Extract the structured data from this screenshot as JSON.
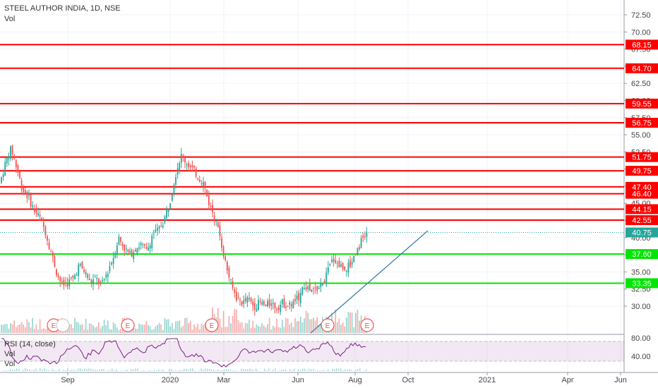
{
  "header": {
    "symbol": "STEEL AUTHOR INDIA, 1D, NSE",
    "vol_label": "Vol"
  },
  "rsi_panel": {
    "label": "RSI (14, close)",
    "vol_label": "Vol",
    "ticks": [
      "80.00",
      "40.00"
    ]
  },
  "chart_data": {
    "type": "candlestick",
    "price_axis": {
      "ticks": [
        72.5,
        70.0,
        67.5,
        65.0,
        62.5,
        60.0,
        57.5,
        55.0,
        52.5,
        50.0,
        47.5,
        45.0,
        42.5,
        40.0,
        37.5,
        35.0,
        32.5,
        30.0
      ],
      "range": [
        29.0,
        73.5
      ]
    },
    "time_axis": {
      "labels": [
        "Sep",
        "2020",
        "Mar",
        "Jun",
        "Aug",
        "Oct",
        "2021",
        "Apr",
        "Jun"
      ]
    },
    "resistance_levels": [
      68.15,
      64.7,
      59.55,
      56.75,
      51.75,
      49.75,
      47.4,
      46.4,
      44.15,
      42.55
    ],
    "support_levels": [
      37.6,
      33.35
    ],
    "last_price": 40.75,
    "earnings_markers": [
      "E",
      "E",
      "E",
      "E",
      "E"
    ],
    "colors": {
      "up": "#26a69a",
      "down": "#ef5350",
      "resistance": "#ff0000",
      "support": "#00e600",
      "trendline": "#3d7fa8",
      "last_price": "#26a69a",
      "rsi": "#7e1f86"
    },
    "price_path": [
      [
        0,
        48
      ],
      [
        8,
        51
      ],
      [
        16,
        53
      ],
      [
        24,
        50
      ],
      [
        32,
        47
      ],
      [
        40,
        46
      ],
      [
        48,
        44
      ],
      [
        56,
        43
      ],
      [
        64,
        41
      ],
      [
        72,
        38
      ],
      [
        80,
        35
      ],
      [
        88,
        33
      ],
      [
        96,
        33.5
      ],
      [
        104,
        34
      ],
      [
        112,
        36
      ],
      [
        120,
        35
      ],
      [
        128,
        33.5
      ],
      [
        136,
        34
      ],
      [
        144,
        33
      ],
      [
        152,
        35
      ],
      [
        160,
        37
      ],
      [
        168,
        40
      ],
      [
        176,
        38.5
      ],
      [
        184,
        37.5
      ],
      [
        192,
        38.5
      ],
      [
        200,
        39
      ],
      [
        208,
        38
      ],
      [
        216,
        40.5
      ],
      [
        224,
        41
      ],
      [
        232,
        42.5
      ],
      [
        240,
        45
      ],
      [
        248,
        49
      ],
      [
        256,
        52
      ],
      [
        264,
        51
      ],
      [
        272,
        50
      ],
      [
        280,
        49
      ],
      [
        288,
        48
      ],
      [
        296,
        45
      ],
      [
        304,
        43
      ],
      [
        312,
        40
      ],
      [
        320,
        36
      ],
      [
        328,
        33
      ],
      [
        336,
        31
      ],
      [
        344,
        30.5
      ],
      [
        352,
        31
      ],
      [
        360,
        30
      ],
      [
        368,
        30.5
      ],
      [
        376,
        30
      ],
      [
        384,
        30.5
      ],
      [
        392,
        29.8
      ],
      [
        400,
        30.5
      ],
      [
        408,
        30
      ],
      [
        416,
        30.5
      ],
      [
        424,
        31.5
      ],
      [
        432,
        33
      ],
      [
        440,
        32
      ],
      [
        448,
        32.5
      ],
      [
        456,
        33
      ],
      [
        464,
        35
      ],
      [
        472,
        37
      ],
      [
        480,
        36
      ],
      [
        488,
        35.5
      ],
      [
        496,
        36
      ],
      [
        504,
        38
      ],
      [
        512,
        39.5
      ],
      [
        520,
        40.75
      ]
    ]
  }
}
